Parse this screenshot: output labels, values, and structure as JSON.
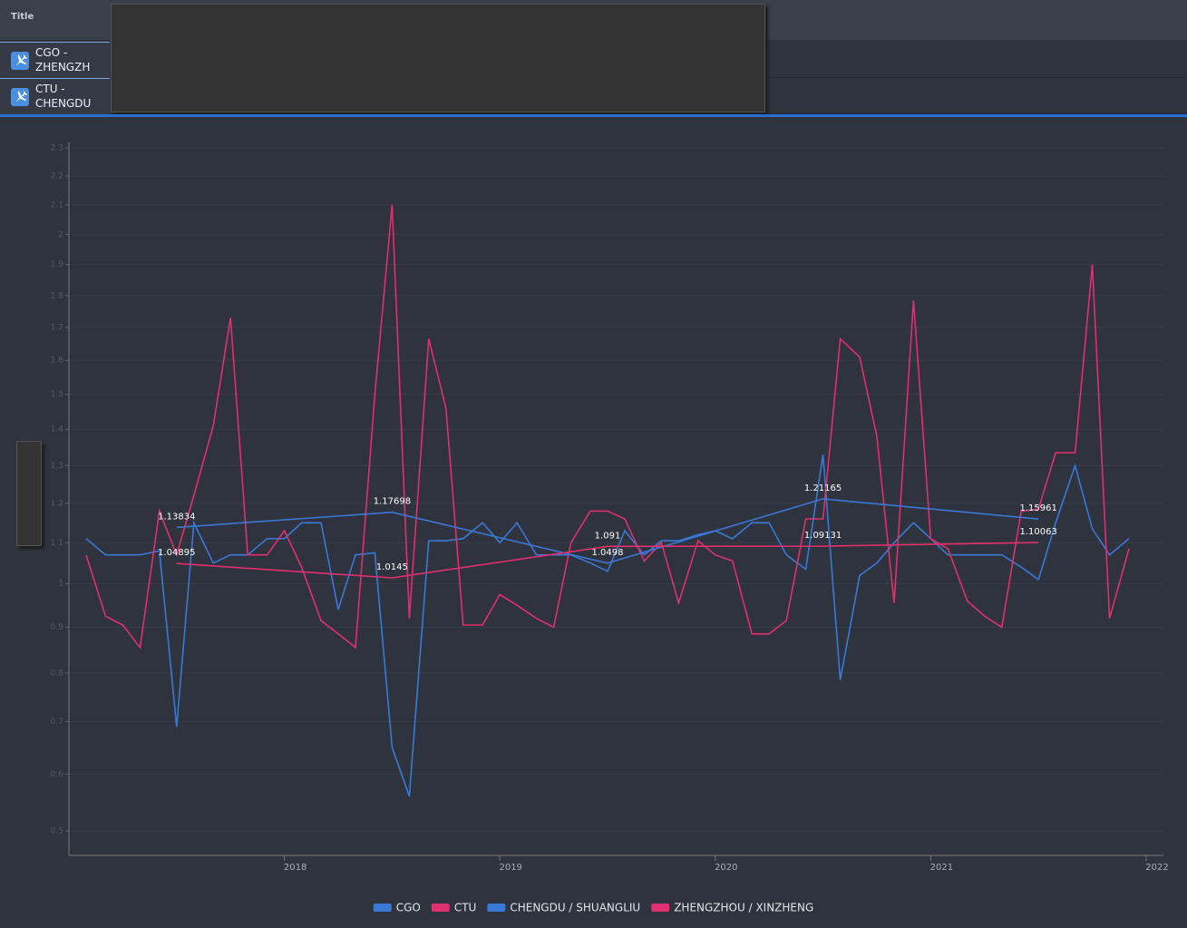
{
  "header": {
    "title": "Title"
  },
  "rows": [
    {
      "label": "CGO - ZHENGZH"
    },
    {
      "label": "CTU - CHENGDU"
    }
  ],
  "chart_data": {
    "type": "line",
    "y_scale": "sqrt",
    "grid": true,
    "legend": "bottom",
    "xlim": [
      2017,
      2022.08
    ],
    "xticks": [
      2018,
      2019,
      2020,
      2021,
      2022
    ],
    "ylim": [
      0.46,
      2.32
    ],
    "yticks": [
      0.5,
      0.6,
      0.7,
      0.8,
      0.9,
      1,
      1.1,
      1.2,
      1.3,
      1.4,
      1.5,
      1.6,
      1.7,
      1.8,
      1.9,
      2,
      2.1,
      2.2,
      2.3
    ],
    "x": [
      2017.08,
      2017.17,
      2017.25,
      2017.33,
      2017.42,
      2017.5,
      2017.58,
      2017.67,
      2017.75,
      2017.83,
      2017.92,
      2018,
      2018.08,
      2018.17,
      2018.25,
      2018.33,
      2018.42,
      2018.5,
      2018.58,
      2018.67,
      2018.75,
      2018.83,
      2018.92,
      2019,
      2019.08,
      2019.17,
      2019.25,
      2019.33,
      2019.42,
      2019.5,
      2019.58,
      2019.67,
      2019.75,
      2019.83,
      2019.92,
      2020,
      2020.08,
      2020.17,
      2020.25,
      2020.33,
      2020.42,
      2020.5,
      2020.58,
      2020.67,
      2020.75,
      2020.83,
      2020.92,
      2021,
      2021.08,
      2021.17,
      2021.25,
      2021.33,
      2021.42,
      2021.5,
      2021.58,
      2021.67,
      2021.75,
      2021.83,
      2021.92
    ],
    "series": [
      {
        "name": "CGO",
        "color": "#3a78d8",
        "values": [
          1.11,
          1.07,
          1.07,
          1.07,
          1.08,
          0.69,
          1.15,
          1.05,
          1.07,
          1.07,
          1.11,
          1.11,
          1.15,
          1.15,
          0.94,
          1.07,
          1.075,
          0.65,
          0.56,
          1.105,
          1.105,
          1.11,
          1.15,
          1.1,
          1.15,
          1.07,
          1.07,
          1.07,
          1.05,
          1.03,
          1.13,
          1.07,
          1.105,
          1.105,
          1.12,
          1.13,
          1.11,
          1.15,
          1.15,
          1.07,
          1.035,
          1.33,
          0.785,
          1.02,
          1.05,
          1.1,
          1.15,
          1.11,
          1.07,
          1.07,
          1.07,
          1.07,
          1.04,
          1.01,
          1.15,
          1.3,
          1.135,
          1.07,
          1.11
        ]
      },
      {
        "name": "CTU",
        "color": "#e0306e",
        "values": [
          1.07,
          0.925,
          0.905,
          0.855,
          1.18,
          1.07,
          1.22,
          1.41,
          1.73,
          1.07,
          1.07,
          1.13,
          1.04,
          0.915,
          0.885,
          0.855,
          1.5,
          2.1,
          0.92,
          1.665,
          1.46,
          0.905,
          0.905,
          0.975,
          0.95,
          0.92,
          0.9,
          1.1,
          1.18,
          1.18,
          1.16,
          1.055,
          1.1,
          0.955,
          1.105,
          1.07,
          1.055,
          0.885,
          0.885,
          0.915,
          1.16,
          1.16,
          1.665,
          1.61,
          1.38,
          0.955,
          1.785,
          1.11,
          1.085,
          0.96,
          0.925,
          0.9,
          1.18,
          1.185,
          1.335,
          1.335,
          1.9,
          0.92,
          1.085
        ]
      },
      {
        "name": "CHENGDU / SHUANGLIU",
        "color": "#3a78d8",
        "x": [
          2017.5,
          2018.5,
          2019.5,
          2020.5,
          2021.5
        ],
        "values": [
          1.13834,
          1.17698,
          1.0498,
          1.21165,
          1.15961
        ],
        "data_labels": true
      },
      {
        "name": "ZHENGZHOU / XINZHENG",
        "color": "#e0306e",
        "x": [
          2017.5,
          2018.5,
          2019.5,
          2020.5,
          2021.5
        ],
        "values": [
          1.04895,
          1.0145,
          1.091,
          1.09131,
          1.10063
        ],
        "data_labels": true
      }
    ]
  }
}
